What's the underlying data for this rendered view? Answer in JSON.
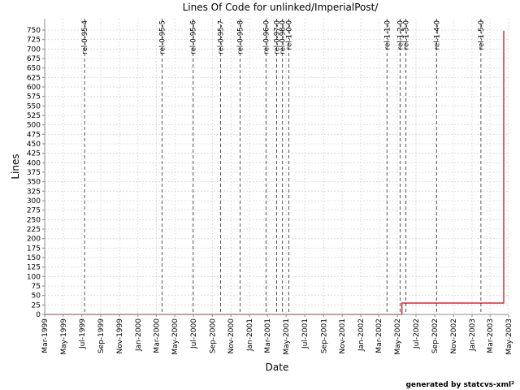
{
  "chart_data": {
    "type": "line",
    "title": "Lines Of Code for unlinked/ImperialPost/",
    "xlabel": "Date",
    "ylabel": "Lines",
    "ylim": [
      0,
      780
    ],
    "xlim": [
      "1999-03-01",
      "2003-05-01"
    ],
    "y_ticks": [
      0,
      25,
      50,
      75,
      100,
      125,
      150,
      175,
      200,
      225,
      250,
      275,
      300,
      325,
      350,
      375,
      400,
      425,
      450,
      475,
      500,
      525,
      550,
      575,
      600,
      625,
      650,
      675,
      700,
      725,
      750
    ],
    "x_ticks": [
      {
        "date": "1999-03-01",
        "label": "Mar-1999"
      },
      {
        "date": "1999-05-01",
        "label": "May-1999"
      },
      {
        "date": "1999-07-01",
        "label": "Jul-1999"
      },
      {
        "date": "1999-09-01",
        "label": "Sep-1999"
      },
      {
        "date": "1999-11-01",
        "label": "Nov-1999"
      },
      {
        "date": "2000-01-01",
        "label": "Jan-2000"
      },
      {
        "date": "2000-03-01",
        "label": "Mar-2000"
      },
      {
        "date": "2000-05-01",
        "label": "May-2000"
      },
      {
        "date": "2000-07-01",
        "label": "Jul-2000"
      },
      {
        "date": "2000-09-01",
        "label": "Sep-2000"
      },
      {
        "date": "2000-11-01",
        "label": "Nov-2000"
      },
      {
        "date": "2001-01-01",
        "label": "Jan-2001"
      },
      {
        "date": "2001-03-01",
        "label": "Mar-2001"
      },
      {
        "date": "2001-05-01",
        "label": "May-2001"
      },
      {
        "date": "2001-07-01",
        "label": "Jul-2001"
      },
      {
        "date": "2001-09-01",
        "label": "Sep-2001"
      },
      {
        "date": "2001-11-01",
        "label": "Nov-2001"
      },
      {
        "date": "2002-01-01",
        "label": "Jan-2002"
      },
      {
        "date": "2002-03-01",
        "label": "Mar-2002"
      },
      {
        "date": "2002-05-01",
        "label": "May-2002"
      },
      {
        "date": "2002-07-01",
        "label": "Jul-2002"
      },
      {
        "date": "2002-09-01",
        "label": "Sep-2002"
      },
      {
        "date": "2002-11-01",
        "label": "Nov-2002"
      },
      {
        "date": "2003-01-01",
        "label": "Jan-2003"
      },
      {
        "date": "2003-03-01",
        "label": "Mar-2003"
      },
      {
        "date": "2003-05-01",
        "label": "May-2003"
      }
    ],
    "series": [
      {
        "color": "#cc0000",
        "step": true,
        "points": [
          {
            "x": "2002-05-16",
            "y": 0
          },
          {
            "x": "2002-05-16",
            "y": 30
          },
          {
            "x": "2003-04-15",
            "y": 30
          },
          {
            "x": "2003-04-15",
            "y": 748
          }
        ]
      }
    ],
    "releases": [
      {
        "date": "1999-07-10",
        "label": "rel-0-95-4"
      },
      {
        "date": "2000-03-20",
        "label": "rel-0-95-5"
      },
      {
        "date": "2000-06-30",
        "label": "rel-0-95-6"
      },
      {
        "date": "2000-09-28",
        "label": "rel-0-95-7"
      },
      {
        "date": "2000-12-01",
        "label": "rel-0-95-8"
      },
      {
        "date": "2001-02-24",
        "label": "rel-0-96-0"
      },
      {
        "date": "2001-03-31",
        "label": "rel-0-97-0"
      },
      {
        "date": "2001-04-19",
        "label": "rel-0-98-0"
      },
      {
        "date": "2001-05-10",
        "label": "rel-1-0-0"
      },
      {
        "date": "2002-03-28",
        "label": "rel-1-1-0"
      },
      {
        "date": "2002-05-10",
        "label": "rel-1-2-0"
      },
      {
        "date": "2002-05-29",
        "label": "rel-1-3-0"
      },
      {
        "date": "2002-09-07",
        "label": "rel-1-4-0"
      },
      {
        "date": "2003-01-30",
        "label": "rel-1-5-0"
      }
    ],
    "grid": true
  },
  "footer": "generated by statcvs-xml²"
}
